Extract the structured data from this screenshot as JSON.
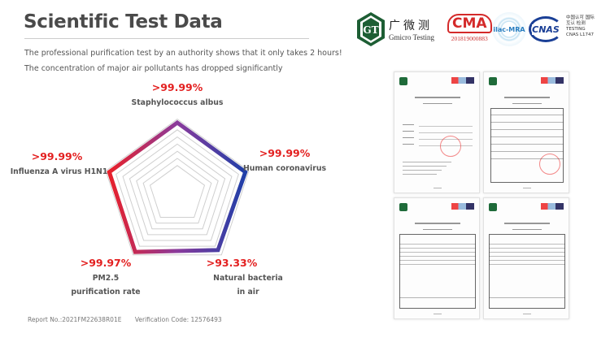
{
  "header": {
    "title": "Scientific Test Data",
    "line1": "The professional purification test by an authority shows that it only takes 2 hours!",
    "line2": "The concentration of major air pollutants has dropped significantly"
  },
  "logos": {
    "gmicro_cn": "广微测",
    "gmicro_en": "Gmicro Testing",
    "gt": "GT",
    "cma": "CMA",
    "cma_no": "201819000883",
    "ilac": "ilac-MRA",
    "cnas": "CNAS",
    "cnas_cn": "中国认可 国际互认 检测",
    "cnas_testing": "TESTING",
    "cnas_no": "CNAS L1747"
  },
  "chart_data": {
    "type": "radar",
    "title": "",
    "axes": [
      {
        "name": "Staphylococcus albus",
        "value": 99.99,
        "label": ">99.99%"
      },
      {
        "name": "Human coronavirus",
        "value": 99.99,
        "label": ">99.99%"
      },
      {
        "name": "Natural bacteria in air",
        "line1": "Natural bacteria",
        "line2": "in air",
        "value": 93.33,
        "label": ">93.33%"
      },
      {
        "name": "PM2.5 purification rate",
        "line1": "PM2.5",
        "line2": "purification rate",
        "value": 99.97,
        "label": ">99.97%"
      },
      {
        "name": "Influenza A virus H1N1",
        "value": 99.99,
        "label": ">99.99%"
      }
    ],
    "range": [
      0,
      100
    ],
    "colors": {
      "start": "#e8202a",
      "mid": "#8a3b9c",
      "end": "#1f3fa8"
    }
  },
  "footer": {
    "report": "Report No.:2021FM22638R01E",
    "code": "Verification Code: 12576493"
  }
}
